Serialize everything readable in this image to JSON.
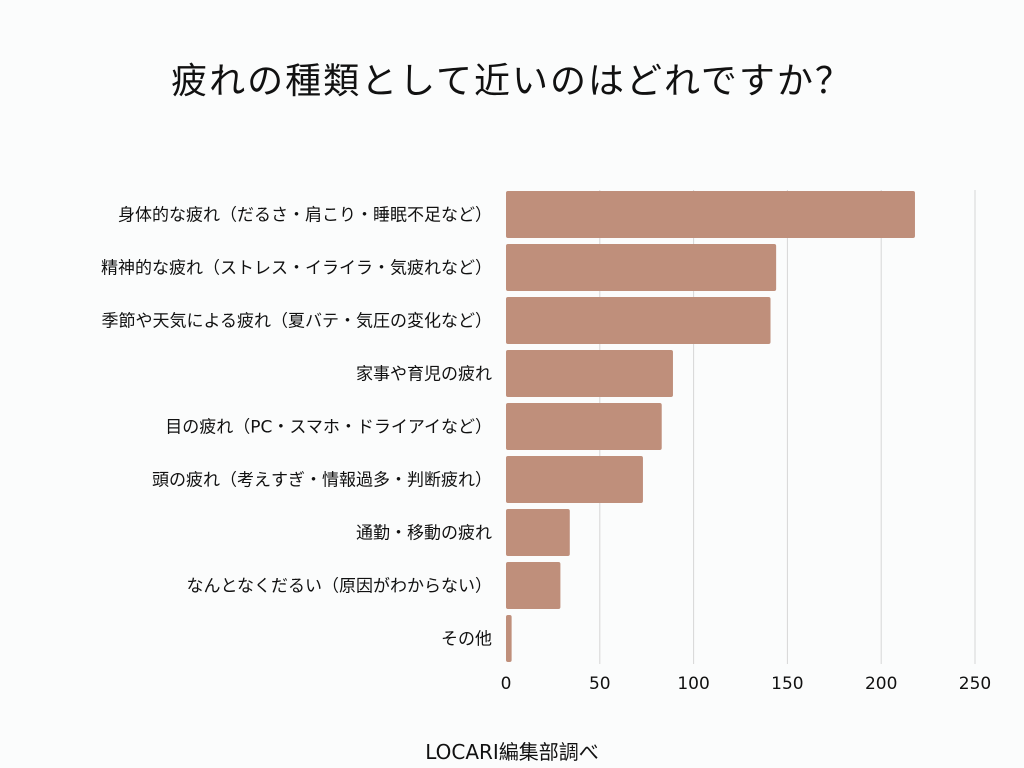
{
  "chart_data": {
    "type": "bar",
    "orientation": "horizontal",
    "title": "疲れの種類として近いのはどれですか？",
    "categories": [
      "身体的な疲れ（だるさ・肩こり・睡眠不足など）",
      "精神的な疲れ（ストレス・イライラ・気疲れなど）",
      "季節や天気による疲れ（夏バテ・気圧の変化など）",
      "家事や育児の疲れ",
      "目の疲れ（PC・スマホ・ドライアイなど）",
      "頭の疲れ（考えすぎ・情報過多・判断疲れ）",
      "通勤・移動の疲れ",
      "なんとなくだるい（原因がわからない）",
      "その他"
    ],
    "values": [
      218,
      144,
      141,
      89,
      83,
      73,
      34,
      29,
      3
    ],
    "xlim": [
      0,
      250
    ],
    "xticks": [
      0,
      50,
      100,
      150,
      200,
      250
    ],
    "xlabel": "",
    "ylabel": "",
    "grid": "vertical",
    "bar_color": "#bf8f7b",
    "grid_color": "#d6d6d6"
  },
  "source": "LOCARI編集部調べ"
}
